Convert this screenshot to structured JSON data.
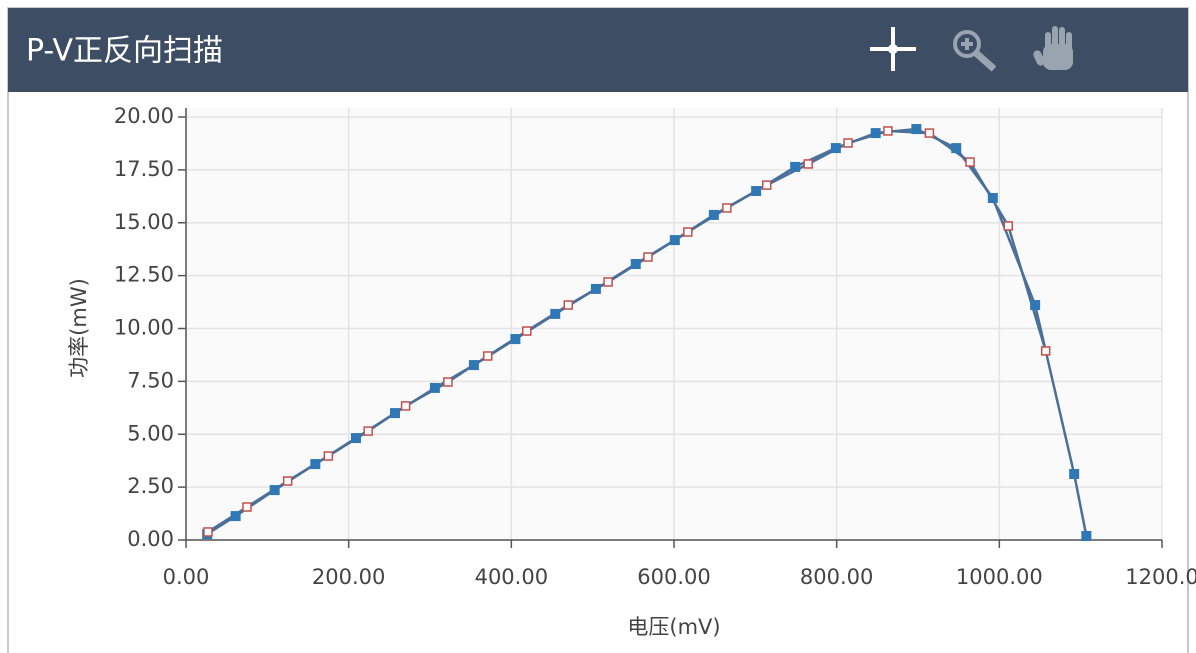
{
  "chart_data": {
    "type": "line",
    "title": "P-V正反向扫描",
    "x_label": "电压(mV)",
    "y_label": "功率(mW)",
    "xlim": [
      0,
      1200
    ],
    "ylim": [
      0,
      20
    ],
    "xticks": [
      {
        "value": 0,
        "label": "0.00"
      },
      {
        "value": 200,
        "label": "200.00"
      },
      {
        "value": 400,
        "label": "400.00"
      },
      {
        "value": 600,
        "label": "600.00"
      },
      {
        "value": 800,
        "label": "800.00"
      },
      {
        "value": 1000,
        "label": "1000.00"
      },
      {
        "value": 1200,
        "label": "1200.0"
      }
    ],
    "yticks": [
      {
        "value": 0,
        "label": "0.00"
      },
      {
        "value": 2.5,
        "label": "2.50"
      },
      {
        "value": 5,
        "label": "5.00"
      },
      {
        "value": 7.5,
        "label": "7.50"
      },
      {
        "value": 10,
        "label": "10.00"
      },
      {
        "value": 12.5,
        "label": "12.50"
      },
      {
        "value": 15,
        "label": "15.00"
      },
      {
        "value": 17.5,
        "label": "17.50"
      },
      {
        "value": 20,
        "label": "20.00"
      }
    ],
    "grid": true,
    "series": [
      {
        "color": "#2f78b5",
        "marker": "filled",
        "x": [
          26,
          61,
          109,
          159,
          209,
          257,
          306,
          354,
          405,
          454,
          504,
          553,
          601,
          649,
          701,
          749,
          799,
          848,
          898,
          947,
          992,
          1044,
          1092,
          1107
        ],
        "values": [
          0.28,
          1.13,
          2.36,
          3.59,
          4.82,
          6.0,
          7.19,
          8.27,
          9.5,
          10.69,
          11.87,
          13.05,
          14.18,
          15.37,
          16.5,
          17.64,
          18.53,
          19.24,
          19.43,
          18.53,
          16.17,
          11.11,
          3.12,
          0.19
        ]
      },
      {
        "color": "#c0504d",
        "marker": "hollow",
        "x": [
          27,
          75,
          125,
          175,
          224,
          270,
          322,
          371,
          419,
          470,
          519,
          568,
          617,
          665,
          714,
          765,
          814,
          863,
          914,
          964,
          1011,
          1057
        ],
        "values": [
          0.38,
          1.56,
          2.79,
          3.97,
          5.15,
          6.34,
          7.47,
          8.7,
          9.88,
          11.11,
          12.2,
          13.38,
          14.56,
          15.7,
          16.78,
          17.78,
          18.77,
          19.34,
          19.24,
          17.87,
          14.85,
          8.94
        ]
      }
    ]
  }
}
